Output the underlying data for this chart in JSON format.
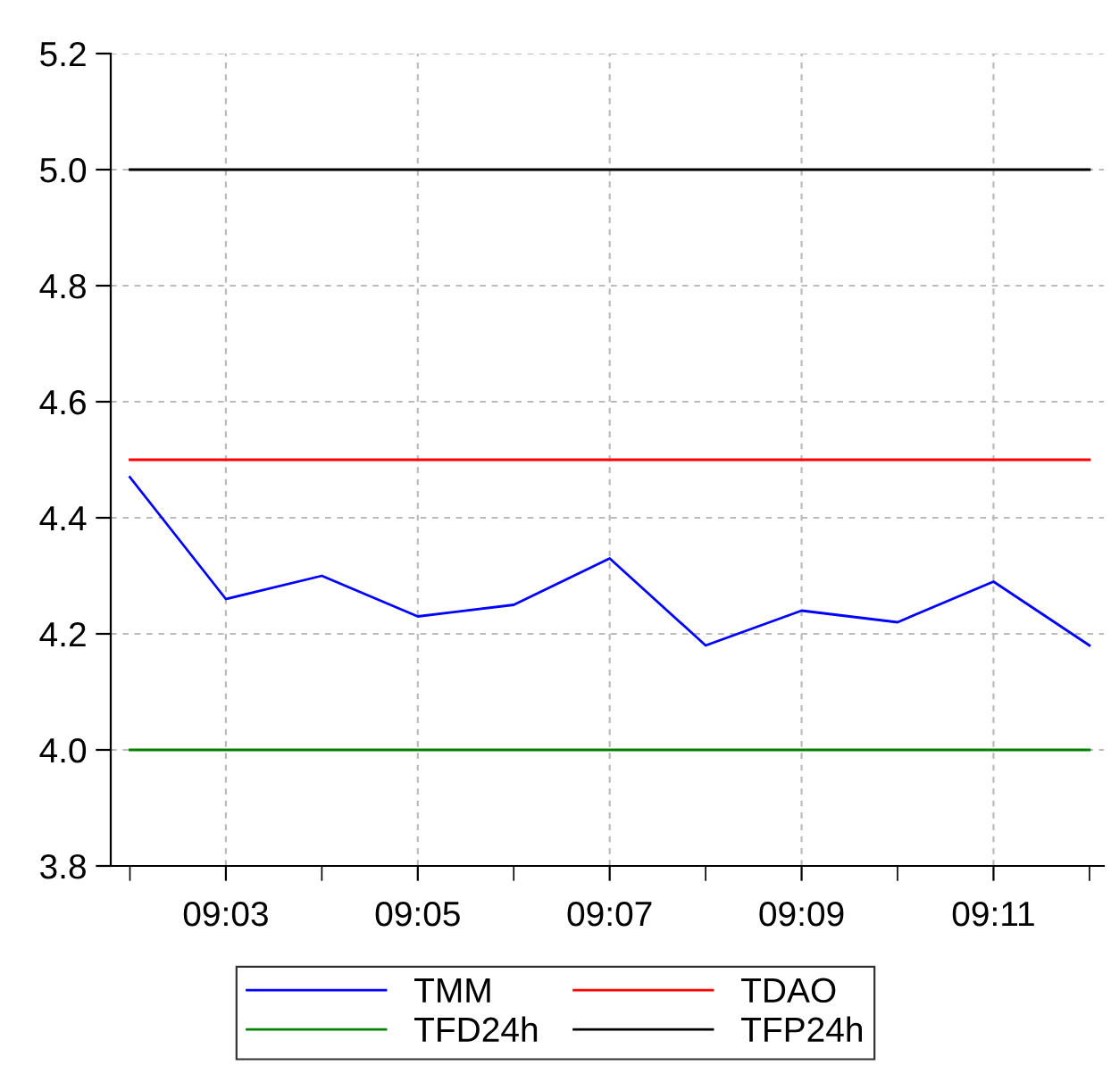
{
  "chart_data": {
    "type": "line",
    "categories": [
      null,
      "09:03",
      null,
      "09:05",
      null,
      "09:07",
      null,
      "09:09",
      null,
      "09:11",
      null
    ],
    "series": [
      {
        "name": "TMM",
        "color": "#0000ff",
        "values": [
          4.47,
          4.26,
          4.3,
          4.23,
          4.25,
          4.33,
          4.18,
          4.24,
          4.22,
          4.29,
          4.18
        ]
      },
      {
        "name": "TFD24h",
        "color": "#008000",
        "values": [
          4.0,
          4.0,
          4.0,
          4.0,
          4.0,
          4.0,
          4.0,
          4.0,
          4.0,
          4.0,
          4.0
        ]
      },
      {
        "name": "TDAO",
        "color": "#ff0000",
        "values": [
          4.5,
          4.5,
          4.5,
          4.5,
          4.5,
          4.5,
          4.5,
          4.5,
          4.5,
          4.5,
          4.5
        ]
      },
      {
        "name": "TFP24h",
        "color": "#000000",
        "values": [
          5.0,
          5.0,
          5.0,
          5.0,
          5.0,
          5.0,
          5.0,
          5.0,
          5.0,
          5.0,
          5.0
        ]
      }
    ],
    "ylim": [
      3.8,
      5.2
    ],
    "yticks": [
      {
        "value": 3.8,
        "label": "3.8"
      },
      {
        "value": 4.0,
        "label": "4.0"
      },
      {
        "value": 4.2,
        "label": "4.2"
      },
      {
        "value": 4.4,
        "label": "4.4"
      },
      {
        "value": 4.6,
        "label": "4.6"
      },
      {
        "value": 4.8,
        "label": "4.8"
      },
      {
        "value": 5.0,
        "label": "5.0"
      },
      {
        "value": 5.2,
        "label": "5.2"
      }
    ],
    "grid": true,
    "legend": "bottom",
    "marker": "none",
    "line_style": "solid"
  }
}
